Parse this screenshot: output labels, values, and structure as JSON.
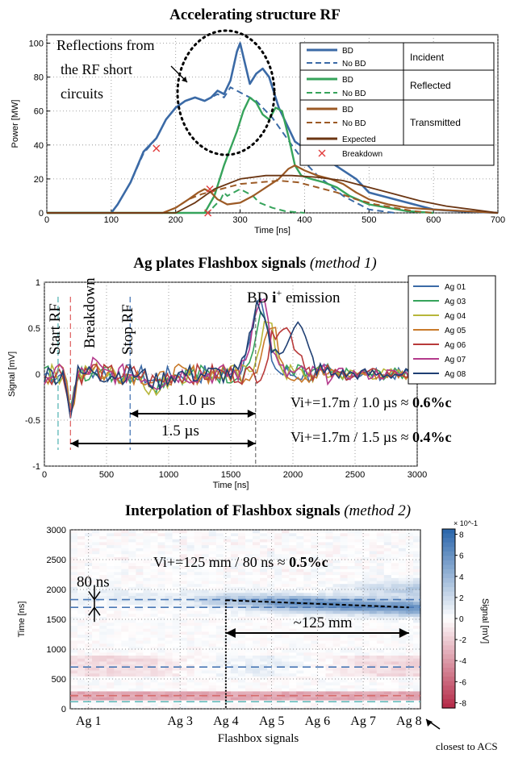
{
  "chart_data": [
    {
      "type": "line",
      "title": "Accelerating structure RF",
      "xlabel": "Time [ns]",
      "ylabel": "Power [MW]",
      "xlim": [
        0,
        700
      ],
      "ylim": [
        0,
        105
      ],
      "xticks": [
        "0",
        "100",
        "200",
        "300",
        "400",
        "500",
        "600",
        "700"
      ],
      "yticks": [
        "0",
        "20",
        "40",
        "60",
        "80",
        "100"
      ],
      "grid": true,
      "annotation": "Reflections from the RF short circuits",
      "legend": {
        "placement": "top-right",
        "entries": [
          {
            "label": "BD",
            "color": "#3b6aa6",
            "style": "solid",
            "group": "Incident"
          },
          {
            "label": "No BD",
            "color": "#3b6aa6",
            "style": "dashed",
            "group": "Incident"
          },
          {
            "label": "BD",
            "color": "#36a35b",
            "style": "solid",
            "group": "Reflected"
          },
          {
            "label": "No BD",
            "color": "#36a35b",
            "style": "dashed",
            "group": "Reflected"
          },
          {
            "label": "BD",
            "color": "#9c5a25",
            "style": "solid",
            "group": "Transmitted"
          },
          {
            "label": "No BD",
            "color": "#9c5a25",
            "style": "dashed",
            "group": "Transmitted"
          },
          {
            "label": "Expected",
            "color": "#6b3512",
            "style": "solid",
            "group": "Transmitted"
          },
          {
            "label": "Breakdown",
            "color": "#e23b3b",
            "style": "marker-x",
            "group": ""
          }
        ],
        "groups": [
          "Incident",
          "Reflected",
          "Transmitted"
        ]
      },
      "series": [
        {
          "name": "Incident BD",
          "color": "#3b6aa6",
          "dash": false,
          "width": 2.6,
          "x": [
            0,
            100,
            110,
            130,
            150,
            170,
            185,
            200,
            215,
            230,
            245,
            255,
            265,
            275,
            285,
            295,
            300,
            305,
            315,
            325,
            335,
            345,
            360,
            375,
            385,
            400,
            420,
            440,
            460,
            480,
            500,
            520,
            560,
            600,
            640,
            700
          ],
          "y": [
            0,
            0,
            5,
            18,
            36,
            44,
            55,
            62,
            66,
            68,
            66,
            68,
            72,
            70,
            78,
            95,
            100,
            92,
            76,
            82,
            85,
            80,
            62,
            50,
            42,
            38,
            32,
            30,
            25,
            20,
            12,
            10,
            6,
            2,
            1,
            0
          ]
        },
        {
          "name": "Incident No BD",
          "color": "#3b6aa6",
          "dash": true,
          "width": 2.0,
          "x": [
            0,
            100,
            110,
            130,
            150,
            170,
            185,
            200,
            215,
            230,
            245,
            255,
            265,
            275,
            285,
            295,
            305,
            315,
            325,
            335,
            350,
            365,
            380,
            400,
            420,
            440,
            460,
            480,
            500,
            540
          ],
          "y": [
            0,
            0,
            5,
            18,
            35,
            44,
            55,
            62,
            66,
            68,
            66,
            68,
            70,
            68,
            74,
            72,
            70,
            68,
            66,
            62,
            56,
            48,
            40,
            30,
            22,
            16,
            10,
            6,
            2,
            0
          ]
        },
        {
          "name": "Reflected BD",
          "color": "#36a35b",
          "dash": false,
          "width": 2.4,
          "x": [
            0,
            245,
            260,
            275,
            285,
            295,
            305,
            315,
            325,
            335,
            345,
            355,
            365,
            375,
            385,
            395,
            410,
            430,
            450,
            470,
            500,
            530,
            560,
            600
          ],
          "y": [
            0,
            0,
            10,
            28,
            38,
            48,
            60,
            68,
            65,
            58,
            55,
            62,
            60,
            45,
            28,
            22,
            20,
            18,
            15,
            10,
            5,
            3,
            1,
            0
          ]
        },
        {
          "name": "Reflected No BD",
          "color": "#36a35b",
          "dash": true,
          "width": 2.0,
          "x": [
            0,
            250,
            260,
            270,
            275,
            280,
            290,
            300,
            310,
            320,
            330,
            350,
            370,
            400
          ],
          "y": [
            0,
            0,
            4,
            8,
            12,
            10,
            12,
            14,
            12,
            10,
            6,
            3,
            1,
            0
          ]
        },
        {
          "name": "Transmitted BD",
          "color": "#9c5a25",
          "dash": false,
          "width": 2.2,
          "x": [
            0,
            180,
            200,
            220,
            235,
            245,
            255,
            265,
            280,
            300,
            320,
            340,
            360,
            375,
            385,
            400,
            420,
            440,
            460,
            480,
            500,
            530,
            560,
            600,
            650,
            700
          ],
          "y": [
            0,
            0,
            3,
            8,
            12,
            14,
            12,
            8,
            5,
            6,
            10,
            15,
            20,
            26,
            28,
            25,
            22,
            20,
            17,
            12,
            8,
            5,
            3,
            2,
            1,
            0
          ]
        },
        {
          "name": "Transmitted No BD",
          "color": "#9c5a25",
          "dash": true,
          "width": 2.0,
          "x": [
            0,
            180,
            200,
            220,
            240,
            260,
            280,
            300,
            330,
            360,
            390,
            420,
            450,
            480,
            510,
            540,
            570,
            600
          ],
          "y": [
            0,
            0,
            3,
            8,
            11,
            13,
            15,
            17,
            18,
            19,
            18,
            15,
            12,
            8,
            5,
            3,
            1,
            0
          ]
        },
        {
          "name": "Expected",
          "color": "#6b3512",
          "dash": false,
          "width": 1.8,
          "x": [
            0,
            200,
            230,
            260,
            300,
            340,
            380,
            420,
            460,
            500,
            540,
            580,
            620,
            660,
            700
          ],
          "y": [
            0,
            0,
            6,
            14,
            20,
            22,
            22,
            21,
            19,
            15,
            11,
            7,
            4,
            2,
            0
          ]
        }
      ],
      "breakdown_markers": [
        {
          "x": 170,
          "y": 38
        },
        {
          "x": 253,
          "y": 14
        },
        {
          "x": 250,
          "y": 0
        }
      ]
    },
    {
      "type": "line",
      "title": "Ag plates Flashbox signals",
      "title_suffix": "(method 1)",
      "xlabel": "Time [ns]",
      "ylabel": "Signal [mV]",
      "xlim": [
        0,
        3000
      ],
      "ylim": [
        -1,
        1
      ],
      "xticks": [
        "0",
        "500",
        "1000",
        "1500",
        "2000",
        "2500",
        "3000"
      ],
      "yticks": [
        "-1",
        "-0.5",
        "0",
        "0.5",
        "1"
      ],
      "grid": true,
      "legend": {
        "placement": "top-right",
        "entries": [
          "Ag 01",
          "Ag 03",
          "Ag 04",
          "Ag 05",
          "Ag 06",
          "Ag 07",
          "Ag 08"
        ]
      },
      "markers": [
        {
          "label": "Start RF",
          "x": 110,
          "color": "#5ab7b7"
        },
        {
          "label": "Breakdown",
          "x": 210,
          "color": "#e06a6a"
        },
        {
          "label": "Stop RF",
          "x": 690,
          "color": "#4a78b5"
        }
      ],
      "annotations": {
        "emission": "BD i+ emission",
        "d1": "1.0 µs",
        "d2": "1.5 µs",
        "v1_pre": "Vi+=1.7m / 1.0 µs ≈ ",
        "v1_bold": "0.6%c",
        "v2_pre": "Vi+=1.7m / 1.5 µs ≈ ",
        "v2_bold": "0.4%c"
      },
      "series": [
        {
          "name": "Ag 01",
          "color": "#3b6aa6",
          "peak_t": 1720,
          "peak_v": 0.82
        },
        {
          "name": "Ag 03",
          "color": "#36a35b",
          "peak_t": 1760,
          "peak_v": 0.62
        },
        {
          "name": "Ag 04",
          "color": "#b7b63a",
          "peak_t": 1790,
          "peak_v": 0.55
        },
        {
          "name": "Ag 05",
          "color": "#c97a2b",
          "peak_t": 1820,
          "peak_v": 0.5
        },
        {
          "name": "Ag 06",
          "color": "#b83a3a",
          "peak_t": 1880,
          "peak_v": 0.45
        },
        {
          "name": "Ag 07",
          "color": "#b43a8c",
          "peak_t": 1740,
          "peak_v": 0.88
        },
        {
          "name": "Ag 08",
          "color": "#1f3f73",
          "peak_t": 1730,
          "peak_v": 0.78
        }
      ]
    },
    {
      "type": "heatmap",
      "title": "Interpolation of Flashbox signals",
      "title_suffix": "(method 2)",
      "xlabel": "Flashbox signals",
      "ylabel": "Time [ns]",
      "ylim": [
        0,
        3000
      ],
      "xticks": [
        "Ag 1",
        "Ag 3",
        "Ag 4",
        "Ag 5",
        "Ag 6",
        "Ag 7",
        "Ag 8"
      ],
      "xtick_positions": [
        1,
        3,
        4,
        5,
        6,
        7,
        8
      ],
      "yticks": [
        "0",
        "500",
        "1000",
        "1500",
        "2000",
        "2500",
        "3000"
      ],
      "colorbar": {
        "label": "Signal [mV]",
        "scale": "× 10^-1",
        "ticks": [
          "8",
          "6",
          "4",
          "2",
          "0",
          "-2",
          "-4",
          "-6",
          "-8"
        ],
        "range": [
          -0.85,
          0.85
        ]
      },
      "hlines": [
        {
          "y": 1830,
          "color": "#4a78b5"
        },
        {
          "y": 1700,
          "color": "#4a78b5"
        },
        {
          "y": 700,
          "color": "#4a78b5"
        },
        {
          "y": 220,
          "color": "#d66a6a"
        },
        {
          "y": 120,
          "color": "#5ab7b7"
        }
      ],
      "trend": {
        "x": [
          4,
          8
        ],
        "y": [
          1820,
          1700
        ]
      },
      "annotations": {
        "v_pre": "Vi+=125 mm / 80 ns ≈ ",
        "v_bold": "0.5%c",
        "dt": "80 ns",
        "dx": "~125 mm",
        "closest": "closest to ACS"
      }
    }
  ]
}
